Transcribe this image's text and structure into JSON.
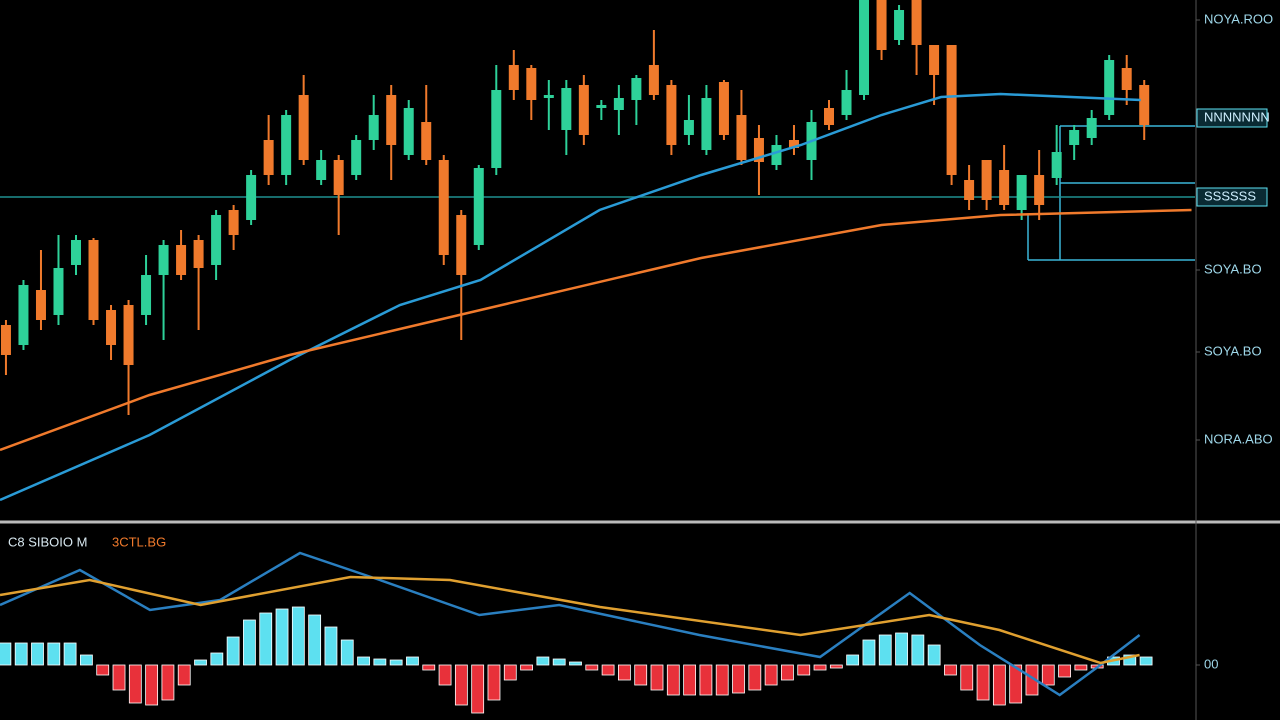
{
  "chart_data": [
    {
      "type": "candlestick",
      "x": [
        0,
        1,
        2,
        3,
        4,
        5,
        6,
        7,
        8,
        9,
        10,
        11,
        12,
        13,
        14,
        15,
        16,
        17,
        18,
        19,
        20,
        21,
        22,
        23,
        24,
        25,
        26,
        27,
        28,
        29,
        30,
        31,
        32,
        33,
        34,
        35,
        36,
        37,
        38,
        39,
        40,
        41,
        42,
        43,
        44,
        45,
        46,
        47,
        48,
        49,
        50,
        51,
        52,
        53,
        54,
        55,
        56,
        57,
        58,
        59,
        60,
        61,
        62,
        63,
        64,
        65
      ],
      "open": [
        195,
        175,
        230,
        205,
        255,
        280,
        210,
        215,
        205,
        245,
        275,
        280,
        255,
        310,
        300,
        380,
        345,
        425,
        340,
        360,
        345,
        380,
        425,
        365,
        398,
        360,
        305,
        275,
        352,
        455,
        452,
        422,
        390,
        435,
        412,
        410,
        420,
        455,
        435,
        385,
        370,
        438,
        405,
        382,
        355,
        380,
        360,
        412,
        405,
        425,
        520,
        480,
        520,
        475,
        475,
        340,
        360,
        350,
        310,
        345,
        342,
        375,
        382,
        405,
        452,
        435
      ],
      "high": [
        200,
        240,
        270,
        285,
        285,
        282,
        215,
        220,
        265,
        280,
        290,
        285,
        310,
        315,
        350,
        405,
        410,
        445,
        370,
        365,
        385,
        425,
        435,
        420,
        435,
        365,
        310,
        355,
        455,
        470,
        455,
        440,
        440,
        445,
        420,
        435,
        445,
        490,
        440,
        425,
        435,
        440,
        430,
        395,
        385,
        395,
        410,
        420,
        450,
        520,
        520,
        515,
        520,
        475,
        475,
        355,
        360,
        375,
        345,
        370,
        395,
        395,
        410,
        465,
        465,
        440
      ],
      "low": [
        145,
        170,
        190,
        195,
        245,
        195,
        160,
        105,
        195,
        180,
        240,
        190,
        240,
        270,
        295,
        335,
        335,
        355,
        335,
        285,
        340,
        370,
        340,
        360,
        355,
        255,
        180,
        270,
        345,
        420,
        400,
        390,
        365,
        375,
        400,
        385,
        395,
        420,
        365,
        375,
        365,
        380,
        355,
        325,
        350,
        365,
        340,
        390,
        400,
        420,
        460,
        475,
        445,
        415,
        335,
        310,
        310,
        310,
        300,
        300,
        335,
        360,
        375,
        400,
        415,
        380
      ],
      "close": [
        165,
        235,
        200,
        252,
        280,
        200,
        175,
        155,
        245,
        275,
        245,
        252,
        305,
        285,
        345,
        345,
        405,
        360,
        360,
        325,
        380,
        405,
        375,
        412,
        360,
        265,
        245,
        352,
        430,
        430,
        420,
        425,
        432,
        385,
        415,
        422,
        442,
        425,
        375,
        400,
        422,
        385,
        360,
        358,
        375,
        372,
        398,
        395,
        430,
        520,
        470,
        510,
        475,
        445,
        345,
        320,
        320,
        315,
        345,
        315,
        368,
        390,
        402,
        460,
        430,
        395
      ],
      "up_color": "#2ed199",
      "down_color": "#f07a2c",
      "xlim": [
        -0.34,
        67.9
      ],
      "ylim": [
        0,
        520
      ],
      "lines": [
        {
          "color": "#2a9bd6",
          "x": [
            -0.34,
            8.2,
            16.2,
            22.5,
            27.1,
            33.9,
            39.7,
            45.4,
            50,
            53.4,
            56.8,
            64.8
          ],
          "values": [
            20,
            85,
            160,
            215,
            240,
            310,
            345,
            375,
            405,
            423,
            426,
            420
          ]
        },
        {
          "color": "#f07a2c",
          "x": [
            -0.34,
            8.2,
            16.2,
            27.1,
            39.7,
            50,
            56.8,
            67.7
          ],
          "values": [
            70,
            125,
            165,
            210,
            262,
            295,
            305,
            310
          ]
        }
      ],
      "hline": 323,
      "hline_color": "#1f8f8f",
      "yticks": [
        {
          "value": 500,
          "label": "NOYA.ROO"
        },
        {
          "value": 402,
          "label": "NNNNNNN"
        },
        {
          "value": 323,
          "label": "SSSSSS"
        },
        {
          "value": 250,
          "label": "SOYA.BO"
        },
        {
          "value": 168,
          "label": "SOYA.BO"
        },
        {
          "value": 80,
          "label": "NORA.ABO"
        }
      ]
    },
    {
      "type": "histogram-oscillator",
      "title": "C8 SIBOIO M",
      "subtitle": "3CTL.BG",
      "values": [
        22,
        22,
        22,
        22,
        22,
        10,
        -10,
        -25,
        -38,
        -40,
        -35,
        -20,
        5,
        12,
        28,
        45,
        52,
        56,
        58,
        50,
        38,
        25,
        8,
        6,
        5,
        8,
        -5,
        -20,
        -40,
        -48,
        -35,
        -15,
        -5,
        8,
        6,
        3,
        -5,
        -10,
        -15,
        -20,
        -25,
        -30,
        -30,
        -30,
        -30,
        -28,
        -25,
        -20,
        -15,
        -10,
        -5,
        -3,
        10,
        25,
        30,
        32,
        30,
        20,
        -10,
        -25,
        -35,
        -40,
        -38,
        -30,
        -20,
        -12,
        -5,
        -3,
        8,
        10,
        8
      ],
      "pos_color": "#5de0f0",
      "neg_color": "#e8313a",
      "xlim": [
        -0.3,
        73
      ],
      "ylim": [
        -55,
        140
      ],
      "lines": [
        {
          "color": "#2a7fc0",
          "x": [
            -0.3,
            4.6,
            8.9,
            13.2,
            18.1,
            23,
            29.1,
            34,
            42.6,
            50,
            55.5,
            59.8,
            64.7,
            67.2,
            69.6
          ],
          "values": [
            60,
            95,
            55,
            65,
            112,
            85,
            50,
            60,
            30,
            8,
            72,
            20,
            -30,
            0,
            30
          ]
        },
        {
          "color": "#e0a030",
          "x": [
            -0.3,
            5.2,
            12,
            21.2,
            27.3,
            36.5,
            48.8,
            56.7,
            61,
            67.2,
            69.6
          ],
          "values": [
            70,
            85,
            60,
            88,
            85,
            58,
            30,
            50,
            35,
            2,
            10
          ]
        }
      ],
      "yticks": [
        {
          "value": 0,
          "label": "00"
        }
      ]
    }
  ]
}
